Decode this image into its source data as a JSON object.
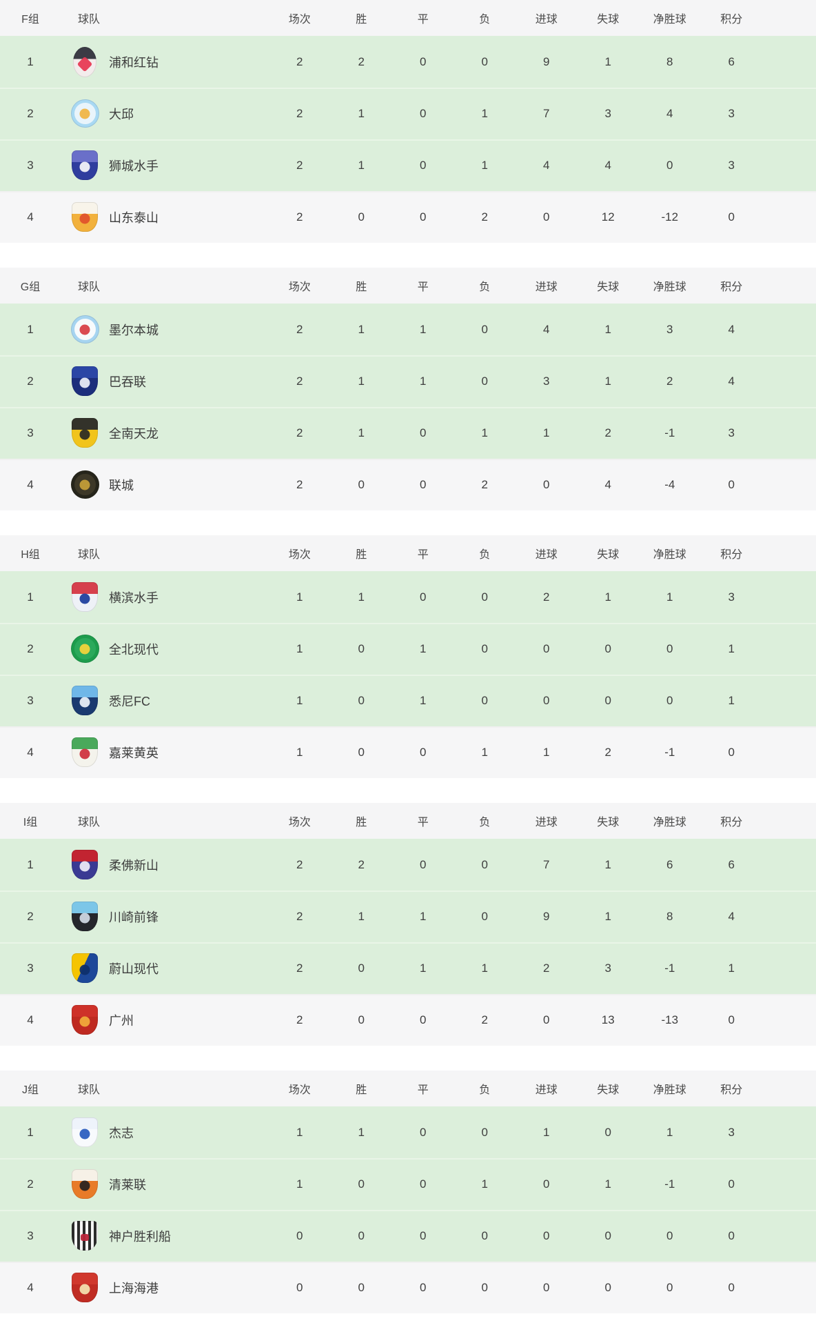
{
  "colors": {
    "row_green": "#dcefdb",
    "row_gray": "#f6f6f7",
    "header_bg": "#f5f5f6",
    "row_separator_green": "#e9f5e7",
    "text": "#3f3f3f"
  },
  "column_headers": {
    "team": "球队",
    "played": "场次",
    "won": "胜",
    "drawn": "平",
    "lost": "负",
    "goals_for": "进球",
    "goals_against": "失球",
    "goal_diff": "净胜球",
    "points": "积分"
  },
  "groups": [
    {
      "label": "F组",
      "teams": [
        {
          "rank": 1,
          "name": "浦和红钻",
          "logo": {
            "crest": "urawa-red-diamonds",
            "variant": "oval",
            "colors": [
              "#3b3b45",
              "#f3ecec",
              "#e73b55"
            ]
          },
          "played": 2,
          "won": 2,
          "drawn": 0,
          "lost": 0,
          "goals_for": 9,
          "goals_against": 1,
          "goal_diff": 8,
          "points": 6
        },
        {
          "rank": 2,
          "name": "大邱",
          "logo": {
            "crest": "daegu-fc",
            "variant": "circle",
            "colors": [
              "#a9d9f3",
              "#e9f4fb",
              "#f0b546"
            ]
          },
          "played": 2,
          "won": 1,
          "drawn": 0,
          "lost": 1,
          "goals_for": 7,
          "goals_against": 3,
          "goal_diff": 4,
          "points": 3
        },
        {
          "rank": 3,
          "name": "狮城水手",
          "logo": {
            "crest": "lion-city-sailors",
            "variant": "shield",
            "colors": [
              "#6a6fc9",
              "#2f3d9e",
              "#f2f2f8"
            ]
          },
          "played": 2,
          "won": 1,
          "drawn": 0,
          "lost": 1,
          "goals_for": 4,
          "goals_against": 4,
          "goal_diff": 0,
          "points": 3
        },
        {
          "rank": 4,
          "name": "山东泰山",
          "logo": {
            "crest": "shandong-taishan",
            "variant": "shield",
            "colors": [
              "#f8f4ea",
              "#f2b13c",
              "#e0532b"
            ]
          },
          "played": 2,
          "won": 0,
          "drawn": 0,
          "lost": 2,
          "goals_for": 0,
          "goals_against": 12,
          "goal_diff": -12,
          "points": 0
        }
      ]
    },
    {
      "label": "G组",
      "teams": [
        {
          "rank": 1,
          "name": "墨尔本城",
          "logo": {
            "crest": "melbourne-city",
            "variant": "circle",
            "colors": [
              "#a6d4f0",
              "#f7fafc",
              "#d84048"
            ]
          },
          "played": 2,
          "won": 1,
          "drawn": 1,
          "lost": 0,
          "goals_for": 4,
          "goals_against": 1,
          "goal_diff": 3,
          "points": 4
        },
        {
          "rank": 2,
          "name": "巴吞联",
          "logo": {
            "crest": "bg-pathum-united",
            "variant": "shield",
            "colors": [
              "#2b46a5",
              "#1c2e7c",
              "#e8ebf5"
            ]
          },
          "played": 2,
          "won": 1,
          "drawn": 1,
          "lost": 0,
          "goals_for": 3,
          "goals_against": 1,
          "goal_diff": 2,
          "points": 4
        },
        {
          "rank": 3,
          "name": "全南天龙",
          "logo": {
            "crest": "jeonnam-dragons",
            "variant": "shield",
            "colors": [
              "#33322a",
              "#f1c41c",
              "#2e2d24"
            ]
          },
          "played": 2,
          "won": 1,
          "drawn": 0,
          "lost": 1,
          "goals_for": 1,
          "goals_against": 2,
          "goal_diff": -1,
          "points": 3
        },
        {
          "rank": 4,
          "name": "联城",
          "logo": {
            "crest": "united-city-fc",
            "variant": "circle",
            "colors": [
              "#26251b",
              "#3d3828",
              "#c29c38"
            ]
          },
          "played": 2,
          "won": 0,
          "drawn": 0,
          "lost": 2,
          "goals_for": 0,
          "goals_against": 4,
          "goal_diff": -4,
          "points": 0
        }
      ]
    },
    {
      "label": "H组",
      "teams": [
        {
          "rank": 1,
          "name": "横滨水手",
          "logo": {
            "crest": "yokohama-f-marinos",
            "variant": "shield",
            "colors": [
              "#d6404d",
              "#eef1f7",
              "#20409e"
            ]
          },
          "played": 1,
          "won": 1,
          "drawn": 0,
          "lost": 0,
          "goals_for": 2,
          "goals_against": 1,
          "goal_diff": 1,
          "points": 3
        },
        {
          "rank": 2,
          "name": "全北现代",
          "logo": {
            "crest": "jeonbuk-hyundai-motors",
            "variant": "circle",
            "colors": [
              "#1d9c4c",
              "#2ba95b",
              "#f2d33c"
            ]
          },
          "played": 1,
          "won": 0,
          "drawn": 1,
          "lost": 0,
          "goals_for": 0,
          "goals_against": 0,
          "goal_diff": 0,
          "points": 1
        },
        {
          "rank": 3,
          "name": "悉尼FC",
          "logo": {
            "crest": "sydney-fc",
            "variant": "shield",
            "colors": [
              "#6fb7e8",
              "#1a3a70",
              "#e8eef5"
            ]
          },
          "played": 1,
          "won": 0,
          "drawn": 1,
          "lost": 0,
          "goals_for": 0,
          "goals_against": 0,
          "goal_diff": 0,
          "points": 1
        },
        {
          "rank": 4,
          "name": "嘉莱黄英",
          "logo": {
            "crest": "hoang-anh-gia-lai",
            "variant": "shield",
            "colors": [
              "#4aa95b",
              "#f4f3ec",
              "#cf3340"
            ]
          },
          "played": 1,
          "won": 0,
          "drawn": 0,
          "lost": 1,
          "goals_for": 1,
          "goals_against": 2,
          "goal_diff": -1,
          "points": 0
        }
      ]
    },
    {
      "label": "I组",
      "teams": [
        {
          "rank": 1,
          "name": "柔佛新山",
          "logo": {
            "crest": "johor-darul-tazim",
            "variant": "shield",
            "colors": [
              "#c22431",
              "#3a3a93",
              "#e9e9f6"
            ]
          },
          "played": 2,
          "won": 2,
          "drawn": 0,
          "lost": 0,
          "goals_for": 7,
          "goals_against": 1,
          "goal_diff": 6,
          "points": 6
        },
        {
          "rank": 2,
          "name": "川崎前锋",
          "logo": {
            "crest": "kawasaki-frontale",
            "variant": "shield",
            "colors": [
              "#7cc6e8",
              "#25262c",
              "#cdd5e0"
            ]
          },
          "played": 2,
          "won": 1,
          "drawn": 1,
          "lost": 0,
          "goals_for": 9,
          "goals_against": 1,
          "goal_diff": 8,
          "points": 4
        },
        {
          "rank": 3,
          "name": "蔚山现代",
          "logo": {
            "crest": "ulsan-hyundai",
            "variant": "shield-diag",
            "colors": [
              "#f5c402",
              "#1d4899",
              "#0f306b"
            ]
          },
          "played": 2,
          "won": 0,
          "drawn": 1,
          "lost": 1,
          "goals_for": 2,
          "goals_against": 3,
          "goal_diff": -1,
          "points": 1
        },
        {
          "rank": 4,
          "name": "广州",
          "logo": {
            "crest": "guangzhou-fc",
            "variant": "shield",
            "colors": [
              "#ce3129",
              "#bf2a21",
              "#f0a93b"
            ]
          },
          "played": 2,
          "won": 0,
          "drawn": 0,
          "lost": 2,
          "goals_for": 0,
          "goals_against": 13,
          "goal_diff": -13,
          "points": 0
        }
      ]
    },
    {
      "label": "J组",
      "teams": [
        {
          "rank": 1,
          "name": "杰志",
          "logo": {
            "crest": "kitchee",
            "variant": "shield",
            "colors": [
              "#eef3fb",
              "#f8fafd",
              "#2d5fc0"
            ]
          },
          "played": 1,
          "won": 1,
          "drawn": 0,
          "lost": 0,
          "goals_for": 1,
          "goals_against": 0,
          "goal_diff": 1,
          "points": 3
        },
        {
          "rank": 2,
          "name": "清莱联",
          "logo": {
            "crest": "chiangrai-united",
            "variant": "shield",
            "colors": [
              "#f6f1e7",
              "#e87b28",
              "#2b2420"
            ]
          },
          "played": 1,
          "won": 0,
          "drawn": 0,
          "lost": 1,
          "goals_for": 0,
          "goals_against": 1,
          "goal_diff": -1,
          "points": 0
        },
        {
          "rank": 3,
          "name": "神户胜利船",
          "logo": {
            "crest": "vissel-kobe",
            "variant": "shield-stripes",
            "colors": [
              "#2b2b2b",
              "#f5f5f5",
              "#b8243a"
            ]
          },
          "played": 0,
          "won": 0,
          "drawn": 0,
          "lost": 0,
          "goals_for": 0,
          "goals_against": 0,
          "goal_diff": 0,
          "points": 0
        },
        {
          "rank": 4,
          "name": "上海海港",
          "logo": {
            "crest": "shanghai-port",
            "variant": "shield",
            "colors": [
              "#d0382d",
              "#c02c23",
              "#f3dfae"
            ]
          },
          "played": 0,
          "won": 0,
          "drawn": 0,
          "lost": 0,
          "goals_for": 0,
          "goals_against": 0,
          "goal_diff": 0,
          "points": 0
        }
      ]
    }
  ]
}
